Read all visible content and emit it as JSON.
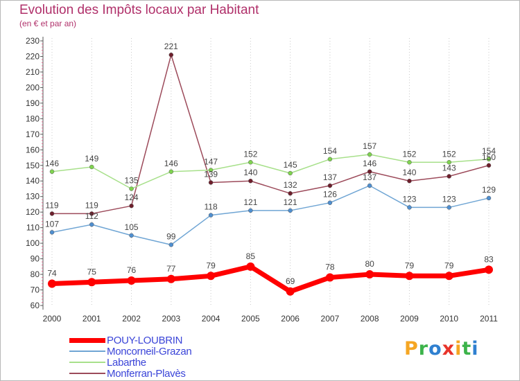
{
  "chart_data": {
    "type": "line",
    "title": "Evolution des Impôts locaux par Habitant",
    "subtitle": "(en € et par an)",
    "xlabel": "",
    "ylabel": "",
    "ylim": [
      60,
      230
    ],
    "ytick_step": 10,
    "grid": "vertical",
    "legend_position": "bottom-left",
    "categories": [
      "2000",
      "2001",
      "2002",
      "2003",
      "2004",
      "2005",
      "2006",
      "2007",
      "2008",
      "2009",
      "2010",
      "2011"
    ],
    "series": [
      {
        "name": "POUY-LOUBRIN",
        "color": "#ff0000",
        "dot": "#ff0000",
        "values": [
          74,
          75,
          76,
          77,
          79,
          85,
          69,
          78,
          80,
          79,
          79,
          83
        ],
        "labels": [
          "74",
          "75",
          "76",
          "77",
          "79",
          "85",
          "69",
          "78",
          "80",
          "79",
          "79",
          "83"
        ]
      },
      {
        "name": "Moncorneil-Grazan",
        "color": "#6fa5d4",
        "dot": "#4f8fd0",
        "values": [
          107,
          112,
          105,
          99,
          118,
          121,
          121,
          126,
          137,
          123,
          123,
          129
        ],
        "labels": [
          "107",
          "112",
          "105",
          "99",
          "118",
          "121",
          "121",
          "126",
          "137",
          "123",
          "123",
          "129"
        ]
      },
      {
        "name": "Labarthe",
        "color": "#a7e08a",
        "dot": "#7fd34f",
        "values": [
          146,
          149,
          135,
          146,
          147,
          152,
          145,
          154,
          157,
          152,
          152,
          154
        ],
        "labels": [
          "146",
          "149",
          "135",
          "146",
          "147",
          "152",
          "145",
          "154",
          "157",
          "152",
          "152",
          "154"
        ]
      },
      {
        "name": "Monferran-Plavès",
        "color": "#9c4a5a",
        "dot": "#6e1f2c",
        "values": [
          119,
          119,
          124,
          221,
          139,
          140,
          132,
          137,
          146,
          140,
          143,
          150
        ],
        "labels": [
          "119",
          "119",
          "124",
          "221",
          "139",
          "140",
          "132",
          "137",
          "146",
          "140",
          "143",
          "150"
        ]
      }
    ]
  },
  "branding": {
    "logo_letters": [
      "P",
      "r",
      "o",
      "x",
      "i",
      "t",
      "i"
    ],
    "logo_colors": [
      "#f5a623",
      "#3cb34a",
      "#2f80d0",
      "#e8332a",
      "#f5a623",
      "#3cb34a",
      "#2f80d0"
    ]
  }
}
